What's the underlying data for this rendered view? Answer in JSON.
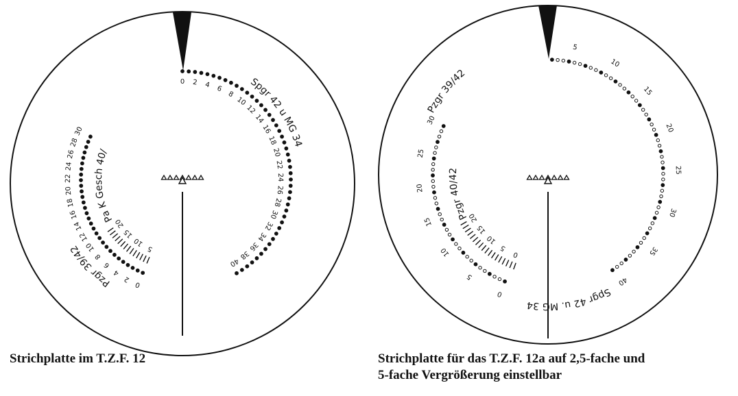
{
  "reticles": [
    {
      "caption": "Strichplatte im T.Z.F. 12",
      "right_scale": {
        "label": "Spgr 42 u MG 34",
        "ticks": [
          "0",
          "2",
          "4",
          "6",
          "8",
          "10",
          "12",
          "14",
          "16",
          "18",
          "20",
          "22",
          "24",
          "26",
          "28",
          "30",
          "32",
          "34",
          "36",
          "38",
          "40"
        ]
      },
      "left_scale": {
        "label": "Pzgr 39/42",
        "ticks": [
          "0",
          "2",
          "4",
          "6",
          "8",
          "10",
          "12",
          "14",
          "16",
          "18",
          "20",
          "22",
          "24",
          "26",
          "28",
          "30"
        ]
      },
      "inner_scale": {
        "label": "Pa K Gesch 40/42",
        "ticks": [
          "5",
          "10",
          "15",
          "20"
        ]
      }
    },
    {
      "caption_lines": [
        "Strichplatte für das T.Z.F. 12a auf 2,5-fache und",
        "5-fache Vergrößerung einstellbar"
      ],
      "right_scale": {
        "label": "Spgr 42 u. MG 34",
        "ticks": [
          "5",
          "10",
          "15",
          "20",
          "25",
          "30",
          "35",
          "40"
        ]
      },
      "left_scale": {
        "label": "Pzgr 39/42",
        "ticks": [
          "0",
          "5",
          "10",
          "15",
          "20",
          "25",
          "30"
        ]
      },
      "inner_scale": {
        "label": "Pzgr 40/42",
        "ticks": [
          "0",
          "5",
          "10",
          "15",
          "20"
        ]
      }
    }
  ]
}
